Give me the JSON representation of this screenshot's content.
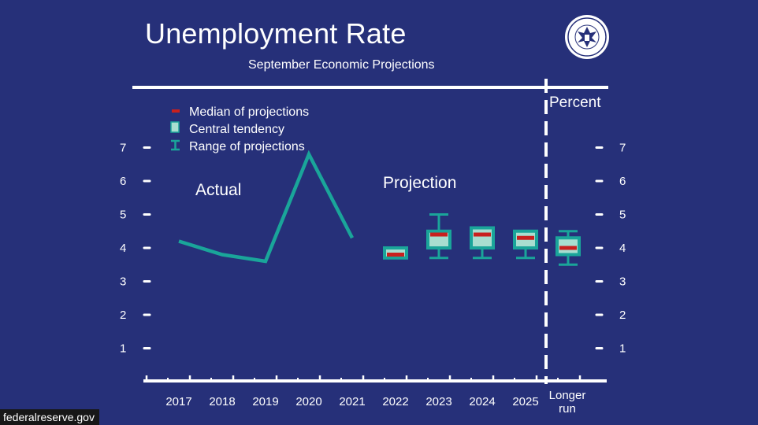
{
  "source_label": "federalreserve.gov",
  "seal": {
    "icon": "federal-reserve-seal-icon",
    "text": "UNITED STATES FEDERAL RESERVE SYSTEM"
  },
  "colors": {
    "background": "#263079",
    "line": "#1aa59a",
    "central_tendency": "#a8ded0",
    "median": "#c8201e"
  },
  "chart_data": {
    "type": "line",
    "title": "Unemployment Rate",
    "subtitle": "September Economic Projections",
    "unit_label": "Percent",
    "ylim": [
      0,
      7
    ],
    "yticks": [
      "1",
      "2",
      "3",
      "4",
      "5",
      "6",
      "7"
    ],
    "categories": [
      "2017",
      "2018",
      "2019",
      "2020",
      "2021",
      "2022",
      "2023",
      "2024",
      "2025",
      "Longer run"
    ],
    "legend": [
      "Median of projections",
      "Central tendency",
      "Range of projections"
    ],
    "legend_placement": "top-left",
    "annotations": [
      "Actual",
      "Projection"
    ],
    "actual": {
      "x": [
        "2017",
        "2018",
        "2019",
        "2020",
        "2021"
      ],
      "values": [
        4.2,
        3.8,
        3.6,
        6.8,
        4.3
      ]
    },
    "projections": [
      {
        "x": "2022",
        "median": 3.8,
        "central": [
          3.7,
          4.0
        ],
        "range": [
          3.7,
          4.0
        ]
      },
      {
        "x": "2023",
        "median": 4.4,
        "central": [
          4.0,
          4.5
        ],
        "range": [
          3.7,
          5.0
        ]
      },
      {
        "x": "2024",
        "median": 4.4,
        "central": [
          4.0,
          4.6
        ],
        "range": [
          3.7,
          4.5
        ]
      },
      {
        "x": "2025",
        "median": 4.3,
        "central": [
          4.0,
          4.5
        ],
        "range": [
          3.7,
          4.5
        ]
      },
      {
        "x": "Longer run",
        "median": 4.0,
        "central": [
          3.8,
          4.3
        ],
        "range": [
          3.5,
          4.5
        ]
      }
    ]
  }
}
